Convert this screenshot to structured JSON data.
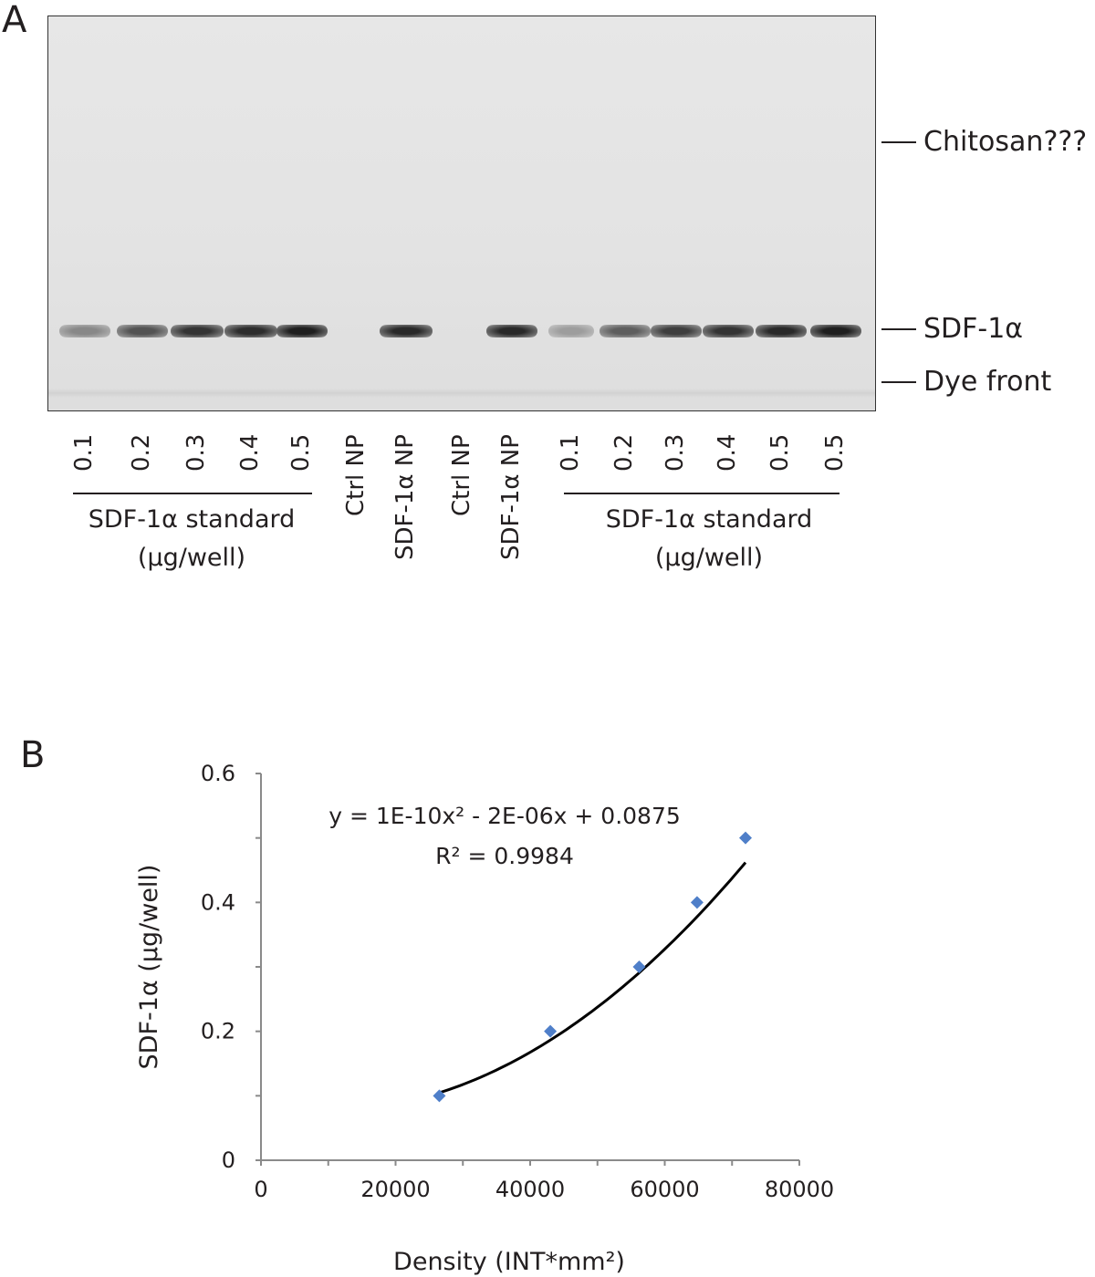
{
  "panel_a": {
    "letter": "A",
    "markers": [
      {
        "label": "Chitosan???"
      },
      {
        "label": "SDF-1α"
      },
      {
        "label": "Dye front"
      }
    ],
    "lanes": [
      "0.1",
      "0.2",
      "0.3",
      "0.4",
      "0.5",
      "Ctrl NP",
      "SDF-1α NP",
      "Ctrl NP",
      "SDF-1α NP",
      "0.1",
      "0.2",
      "0.3",
      "0.4",
      "0.5",
      "0.5"
    ],
    "band_intensity": [
      0.45,
      0.7,
      0.85,
      0.88,
      0.95,
      0,
      0.9,
      0,
      0.9,
      0.35,
      0.65,
      0.8,
      0.85,
      0.9,
      0.95
    ],
    "groups": [
      {
        "title_line1": "SDF-1α standard",
        "title_line2": "(µg/well)"
      },
      {
        "title_line1": "SDF-1α standard",
        "title_line2": "(µg/well)"
      }
    ]
  },
  "panel_b": {
    "letter": "B",
    "equation": "y = 1E-10x² - 2E-06x + 0.0875",
    "r_squared": "R² = 0.9984"
  },
  "chart_data": {
    "type": "scatter",
    "xlabel": "Density (INT*mm²)",
    "ylabel": "SDF-1α (µg/well)",
    "xlim": [
      0,
      80000
    ],
    "ylim": [
      0,
      0.6
    ],
    "x_ticks": [
      "0",
      "20000",
      "40000",
      "60000",
      "80000"
    ],
    "y_ticks": [
      "0",
      "0.2",
      "0.4",
      "0.6"
    ],
    "grid": false,
    "series": [
      {
        "x": [
          26500,
          43000,
          56200,
          64800,
          72000
        ],
        "y": [
          0.1,
          0.2,
          0.3,
          0.4,
          0.5
        ],
        "color": "#4f7fc9",
        "marker": "diamond"
      }
    ],
    "trendline": {
      "type": "polynomial",
      "coefficients": [
        1e-10,
        -2e-06,
        0.0875
      ],
      "color": "#000000"
    }
  }
}
